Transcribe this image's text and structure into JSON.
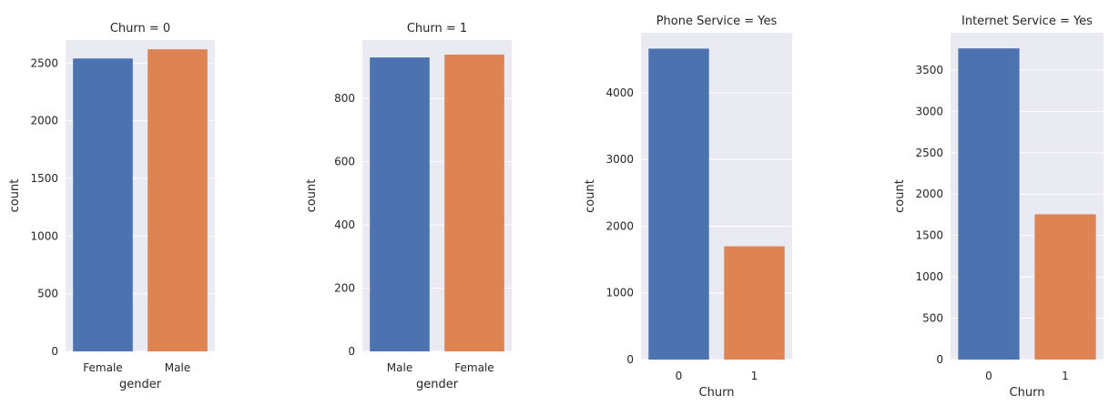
{
  "colors": {
    "background": "#eaeaf2",
    "grid": "#ffffff",
    "text": "#262626",
    "bar_blue": "#4c72b0",
    "bar_orange": "#dd8452"
  },
  "chart_data": [
    {
      "type": "bar",
      "title": "Churn = 0",
      "xlabel": "gender",
      "ylabel": "count",
      "categories": [
        "Female",
        "Male"
      ],
      "values": [
        2540,
        2620
      ],
      "ylim": [
        0,
        2700
      ],
      "yticks": [
        0,
        500,
        1000,
        1500,
        2000,
        2500
      ],
      "grid": true
    },
    {
      "type": "bar",
      "title": "Churn = 1",
      "xlabel": "gender",
      "ylabel": "count",
      "categories": [
        "Male",
        "Female"
      ],
      "values": [
        930,
        939
      ],
      "ylim": [
        0,
        985
      ],
      "yticks": [
        0,
        200,
        400,
        600,
        800
      ],
      "grid": true
    },
    {
      "type": "bar",
      "title": "Phone Service = Yes",
      "xlabel": "Churn",
      "ylabel": "count",
      "categories": [
        "0",
        "1"
      ],
      "values": [
        4662,
        1699
      ],
      "ylim": [
        0,
        4900
      ],
      "yticks": [
        0,
        1000,
        2000,
        3000,
        4000
      ],
      "grid": true
    },
    {
      "type": "bar",
      "title": "Internet Service = Yes",
      "xlabel": "Churn",
      "ylabel": "count",
      "categories": [
        "0",
        "1"
      ],
      "values": [
        3761,
        1756
      ],
      "ylim": [
        0,
        3950
      ],
      "yticks": [
        0,
        500,
        1000,
        1500,
        2000,
        2500,
        3000,
        3500
      ],
      "grid": true
    }
  ]
}
